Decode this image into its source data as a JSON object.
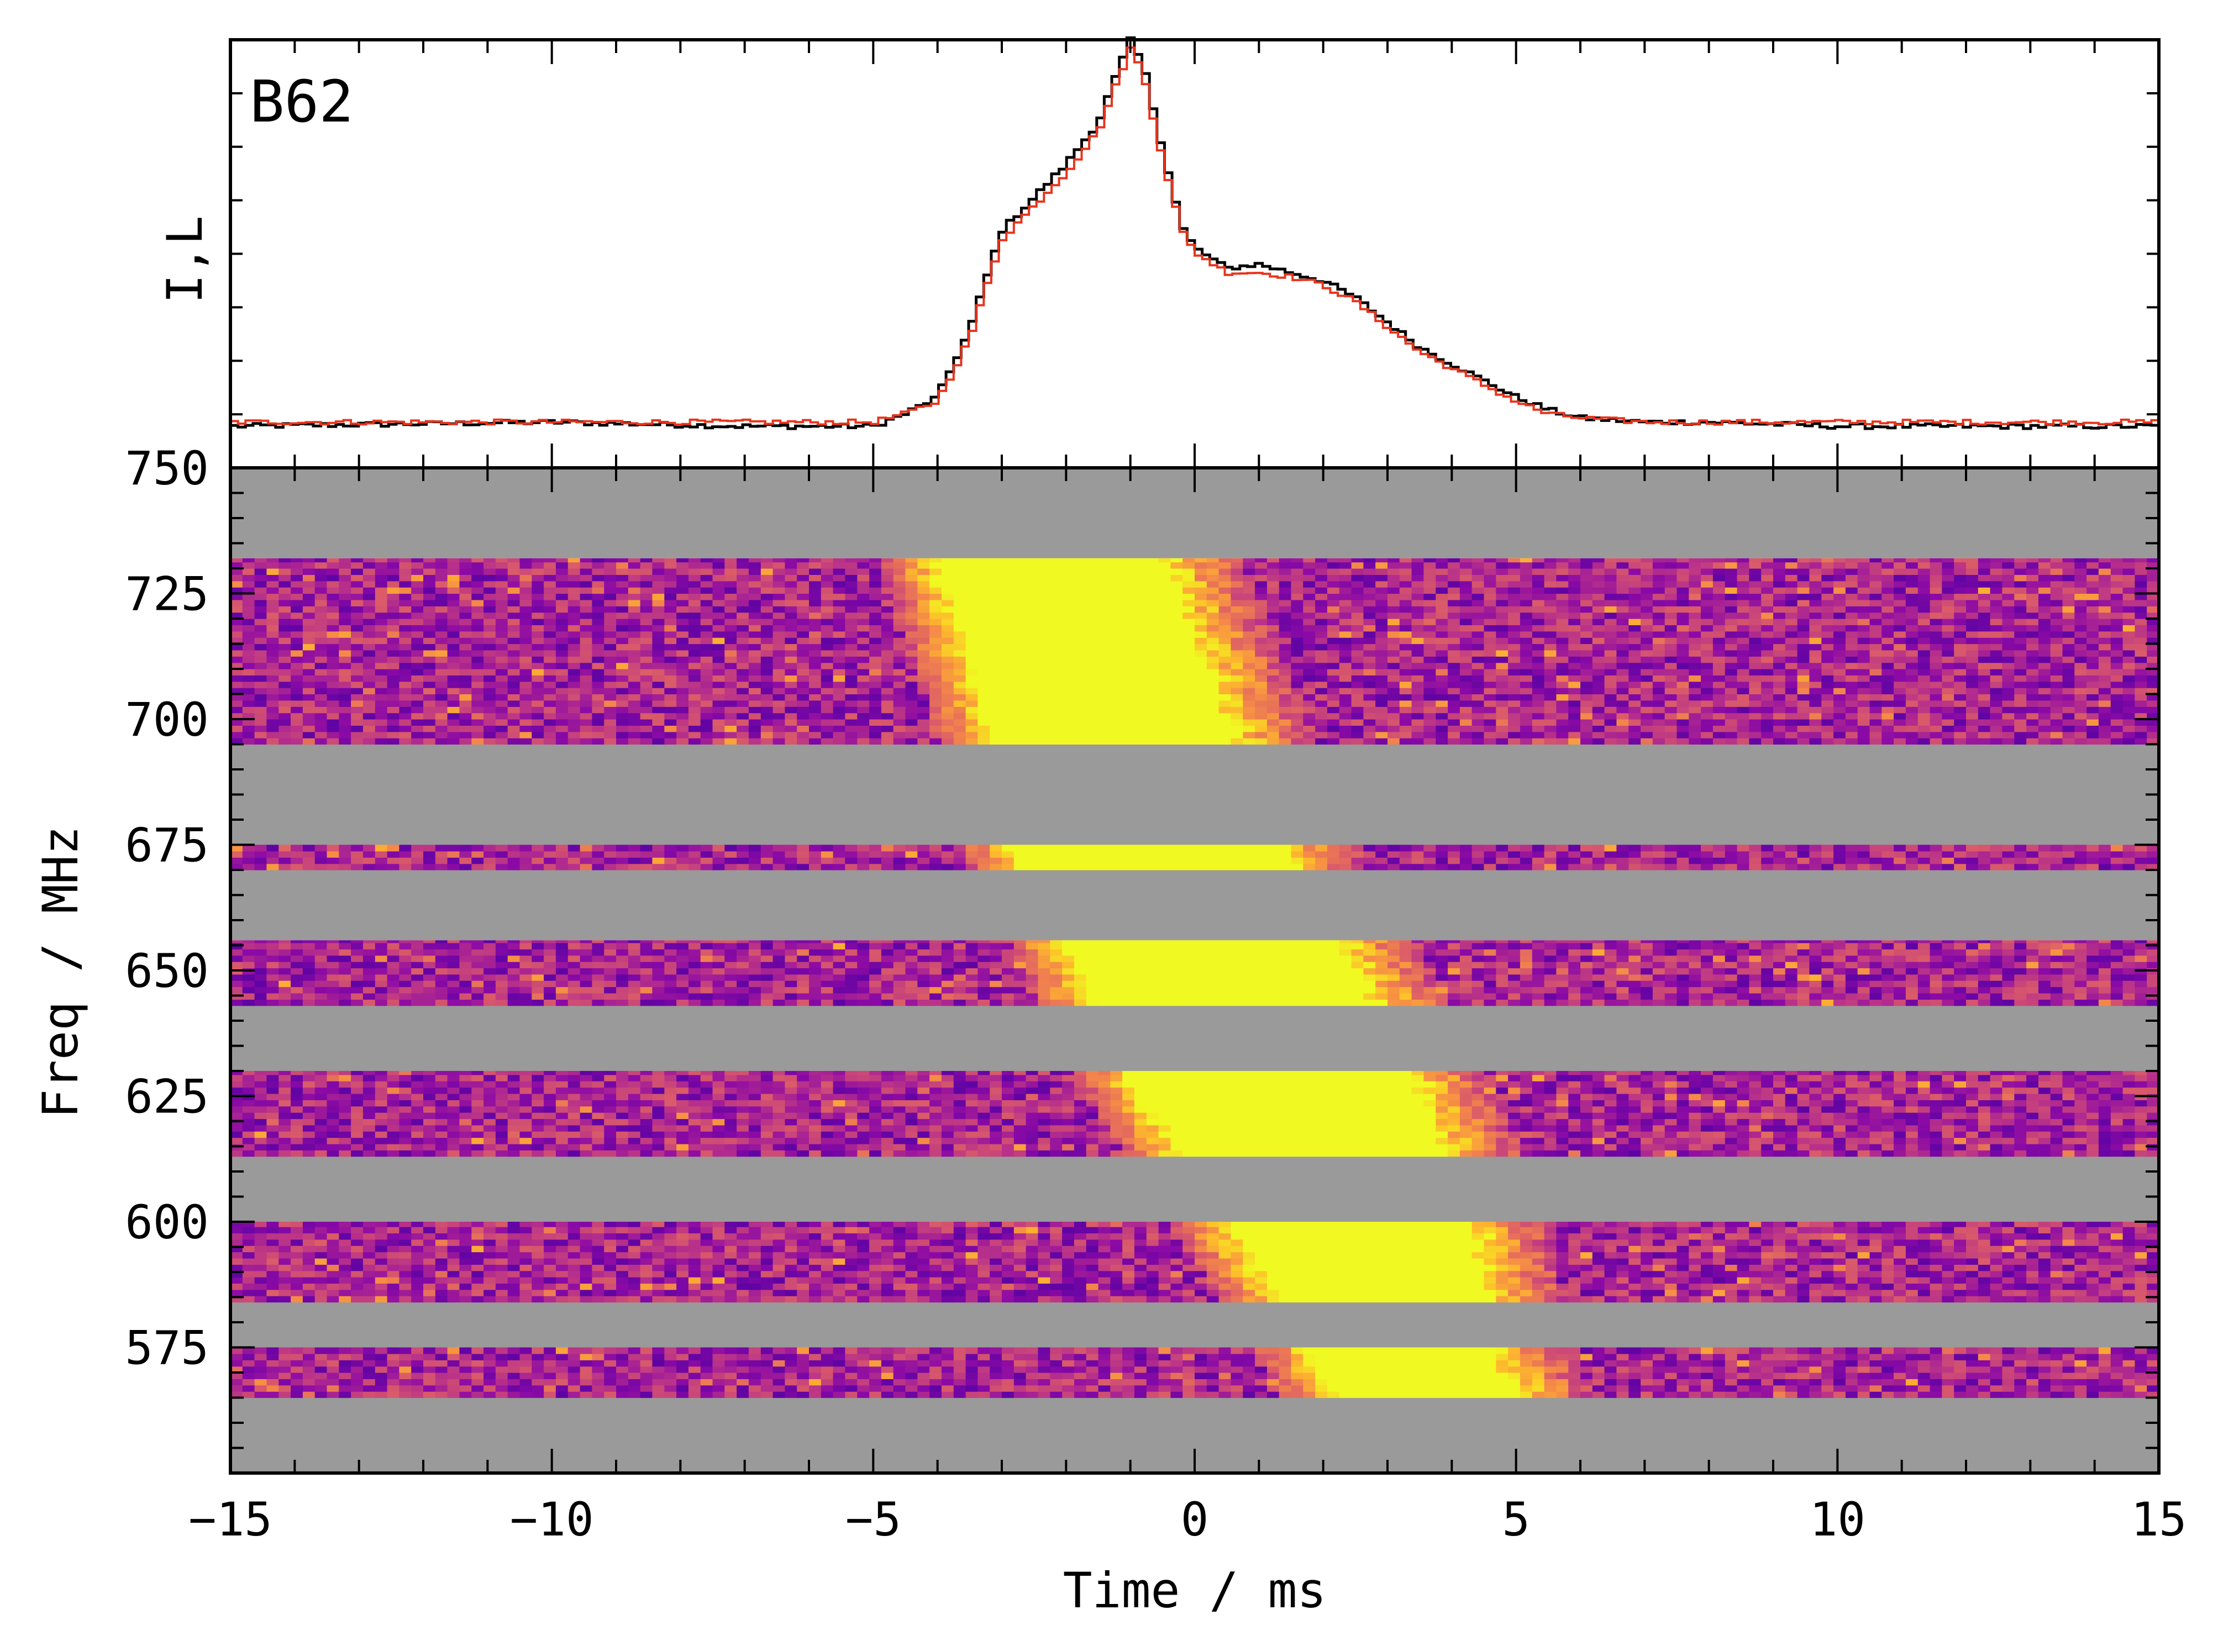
{
  "chart_data": [
    {
      "type": "line",
      "panel": "profile",
      "label": "B62",
      "ylabel": "I,L",
      "xlim": [
        -15,
        15
      ],
      "ylim": [
        -0.03,
        1.0
      ],
      "series": [
        {
          "name": "I",
          "color": "#000000",
          "x": [
            -15,
            -10,
            -7,
            -5,
            -4.5,
            -4,
            -3.5,
            -3,
            -2.5,
            -2,
            -1.5,
            -1.2,
            -1.0,
            -0.8,
            -0.5,
            -0.2,
            0,
            0.5,
            1,
            1.5,
            2,
            2.5,
            3,
            3.5,
            4,
            4.5,
            5,
            5.5,
            6,
            7,
            8,
            10,
            15
          ],
          "y": [
            0.07,
            0.08,
            0.07,
            0.07,
            0.1,
            0.14,
            0.3,
            0.54,
            0.62,
            0.7,
            0.8,
            0.92,
            1.0,
            0.94,
            0.74,
            0.55,
            0.5,
            0.45,
            0.46,
            0.44,
            0.42,
            0.38,
            0.32,
            0.26,
            0.22,
            0.18,
            0.14,
            0.11,
            0.09,
            0.08,
            0.08,
            0.07,
            0.07
          ]
        },
        {
          "name": "L",
          "color": "#e8341c",
          "x": [
            -15,
            -10,
            -7,
            -5,
            -4.5,
            -4,
            -3.5,
            -3,
            -2.5,
            -2,
            -1.5,
            -1.2,
            -1.0,
            -0.8,
            -0.5,
            -0.2,
            0,
            0.5,
            1,
            1.5,
            2,
            2.5,
            3,
            3.5,
            4,
            4.5,
            5,
            5.5,
            6,
            7,
            8,
            10,
            15
          ],
          "y": [
            0.08,
            0.08,
            0.08,
            0.08,
            0.1,
            0.13,
            0.28,
            0.52,
            0.6,
            0.68,
            0.78,
            0.9,
            0.98,
            0.92,
            0.72,
            0.54,
            0.49,
            0.44,
            0.44,
            0.43,
            0.41,
            0.37,
            0.31,
            0.25,
            0.21,
            0.17,
            0.13,
            0.1,
            0.09,
            0.08,
            0.08,
            0.08,
            0.08
          ]
        }
      ]
    },
    {
      "type": "heatmap",
      "panel": "waterfall",
      "colormap": "plasma",
      "xlabel": "Time / ms",
      "ylabel": "Freq / MHz",
      "xlim": [
        -15,
        15
      ],
      "ylim": [
        550,
        750
      ],
      "xticks": [
        -15,
        -10,
        -5,
        0,
        5,
        10,
        15
      ],
      "xtick_labels": [
        "−15",
        "−10",
        "−5",
        "0",
        "5",
        "10",
        "15"
      ],
      "yticks": [
        575,
        600,
        625,
        650,
        675,
        700,
        725,
        750
      ],
      "masked_color": "#9a9a9a",
      "masked_bands_mhz": [
        [
          732,
          750
        ],
        [
          695,
          675
        ],
        [
          670,
          656
        ],
        [
          643,
          630
        ],
        [
          613,
          600
        ],
        [
          584,
          575
        ],
        [
          565,
          550
        ]
      ],
      "masked_bands": [
        [
          732,
          750
        ],
        [
          675,
          695
        ],
        [
          656,
          670
        ],
        [
          630,
          643
        ],
        [
          600,
          613
        ],
        [
          575,
          584
        ],
        [
          550,
          565
        ]
      ],
      "data_bands": [
        [
          695,
          732
        ],
        [
          670,
          675
        ],
        [
          643,
          656
        ],
        [
          613,
          630
        ],
        [
          584,
          600
        ],
        [
          565,
          575
        ]
      ],
      "pulse_track": {
        "freq_mhz": [
          732,
          700,
          675,
          650,
          625,
          600,
          575,
          565
        ],
        "start_ms": [
          -4.0,
          -3.2,
          -2.8,
          -1.8,
          -0.8,
          0.5,
          1.8,
          2.2
        ],
        "end_ms": [
          -0.5,
          0.5,
          1.2,
          2.5,
          3.5,
          4.3,
          4.6,
          5.0
        ]
      }
    }
  ]
}
